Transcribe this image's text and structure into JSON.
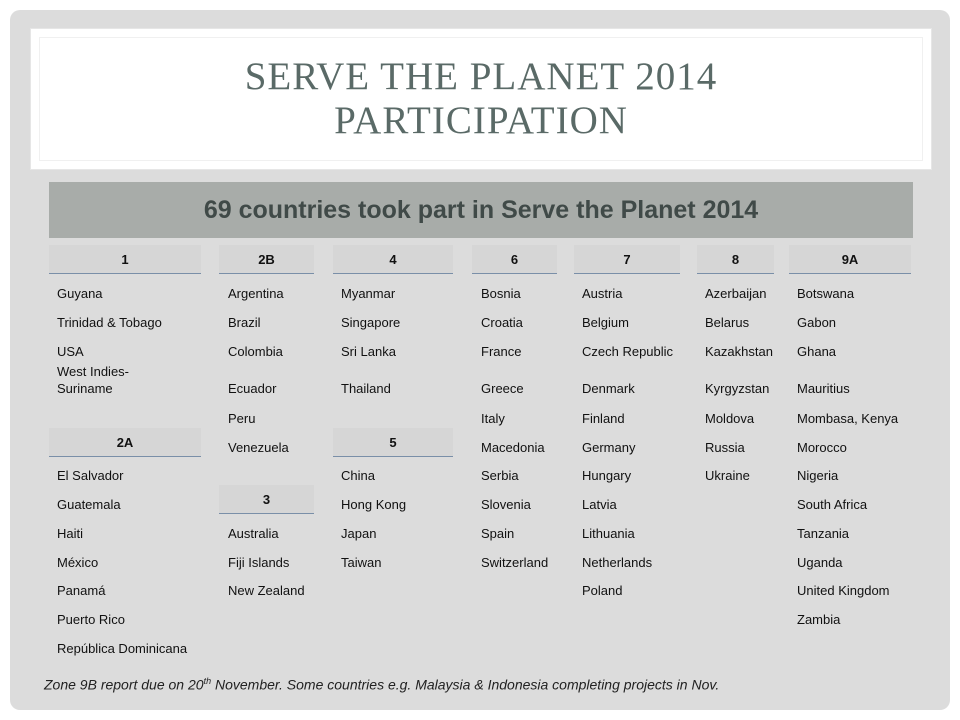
{
  "title": {
    "line1": "SERVE THE PLANET 2014",
    "line2": "PARTICIPATION"
  },
  "banner": "69 countries took part in Serve the Planet 2014",
  "columns": {
    "c1": {
      "header": "1",
      "items": [
        "Guyana",
        "Trinidad & Tobago",
        "USA",
        "West Indies-",
        "Suriname"
      ]
    },
    "c1b": {
      "header": "2A",
      "items": [
        "El Salvador",
        "Guatemala",
        "Haiti",
        "México",
        "Panamá",
        "Puerto Rico",
        "República Dominicana"
      ]
    },
    "c2": {
      "header": "2B",
      "items": [
        "Argentina",
        "Brazil",
        "Colombia",
        "Ecuador",
        "Peru",
        "Venezuela"
      ]
    },
    "c2b": {
      "header": "3",
      "items": [
        "Australia",
        "Fiji Islands",
        "New Zealand"
      ]
    },
    "c3": {
      "header": "4",
      "items": [
        "Myanmar",
        "Singapore",
        "Sri Lanka",
        "Thailand"
      ]
    },
    "c3b": {
      "header": "5",
      "items": [
        "China",
        "Hong Kong",
        "Japan",
        "Taiwan"
      ]
    },
    "c4": {
      "header": "6",
      "items": [
        "Bosnia",
        "Croatia",
        "France",
        "Greece",
        "Italy",
        "Macedonia",
        "Serbia",
        "Slovenia",
        "Spain",
        "Switzerland"
      ]
    },
    "c5": {
      "header": "7",
      "items": [
        "Austria",
        "Belgium",
        "Czech Republic",
        "Denmark",
        "Finland",
        "Germany",
        "Hungary",
        "Latvia",
        "Lithuania",
        "Netherlands",
        "Poland"
      ]
    },
    "c6": {
      "header": "8",
      "items": [
        "Azerbaijan",
        "Belarus",
        "Kazakhstan",
        "Kyrgyzstan",
        "Moldova",
        "Russia",
        "Ukraine"
      ]
    },
    "c7": {
      "header": "9A",
      "items": [
        "Botswana",
        "Gabon",
        "Ghana",
        "Mauritius",
        "Mombasa, Kenya",
        "Morocco",
        "Nigeria",
        "South Africa",
        "Tanzania",
        "Uganda",
        "United Kingdom",
        "Zambia"
      ]
    }
  },
  "footnote": {
    "before": "Zone 9B report due on 20",
    "sup": "th",
    "after": " November. Some countries e.g. Malaysia & Indonesia  completing projects in Nov."
  }
}
